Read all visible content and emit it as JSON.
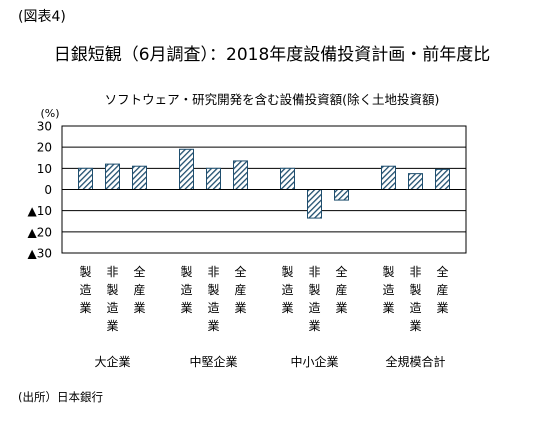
{
  "figure_label": "(図表4)",
  "title": "日銀短観（6月調査）：2018年度設備投資計画・前年度比",
  "source": "(出所）日本銀行",
  "chart_data": {
    "type": "bar",
    "title": "ソフトウェア・研究開発を含む設備投資額(除く土地投資額)",
    "ylabel": "(%)",
    "ylim": [
      -30,
      30
    ],
    "yticks": [
      30,
      20,
      10,
      0,
      -10,
      -20,
      -30
    ],
    "ytick_labels": [
      "30",
      "20",
      "10",
      "0",
      "▲10",
      "▲20",
      "▲30"
    ],
    "grid": true,
    "bar_color": "#1f4e6e",
    "bar_pattern": "diagonal-hatch",
    "groups": [
      {
        "name": "大企業",
        "categories": [
          "製造業",
          "非製造業",
          "全産業"
        ],
        "values": [
          10,
          12,
          11
        ]
      },
      {
        "name": "中堅企業",
        "categories": [
          "製造業",
          "非製造業",
          "全産業"
        ],
        "values": [
          19,
          10,
          13.5
        ]
      },
      {
        "name": "中小企業",
        "categories": [
          "製造業",
          "非製造業",
          "全産業"
        ],
        "values": [
          10,
          -13.5,
          -5
        ]
      },
      {
        "name": "全規模合計",
        "categories": [
          "製造業",
          "非製造業",
          "全産業"
        ],
        "values": [
          11,
          7.5,
          9.5
        ]
      }
    ]
  }
}
